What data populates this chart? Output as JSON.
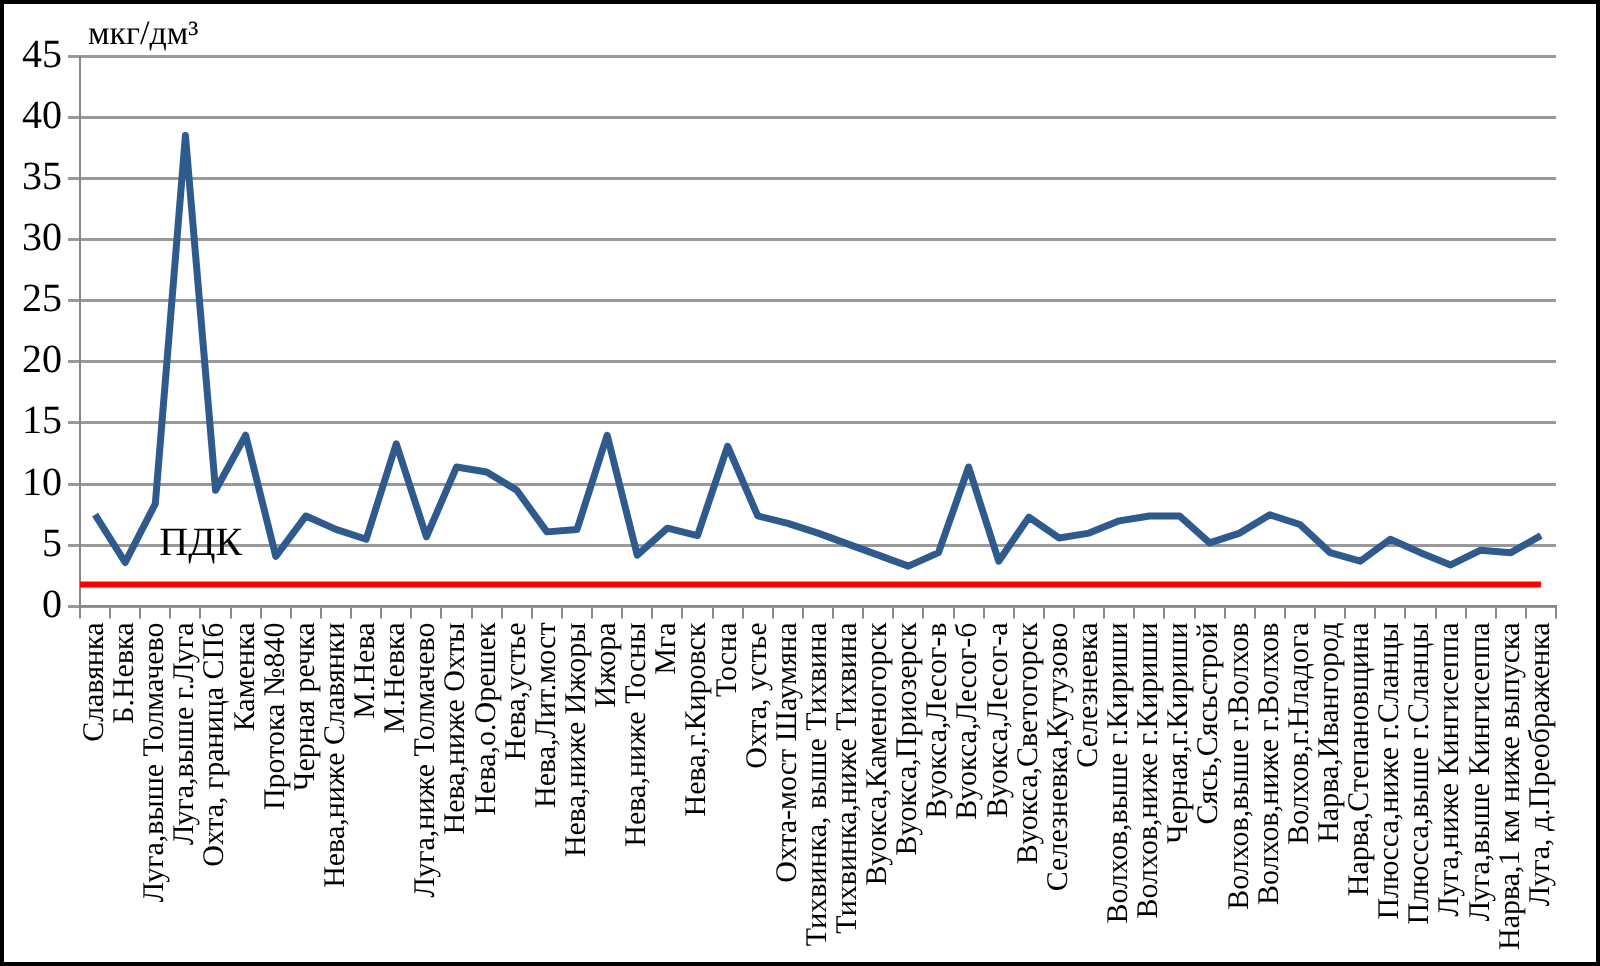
{
  "chart_data": {
    "type": "line",
    "ylabel": "мкг/дм³",
    "categories": [
      "Славянка",
      "Б.Невка",
      "Луга,выше Толмачево",
      "Луга,выше г.Луга",
      "Охта, граница СПб",
      "Каменка",
      "Протока №840",
      "Черная речка",
      "Нева,ниже Славянки",
      "М.Нева",
      "М.Невка",
      "Луга,ниже Толмачево",
      "Нева,ниже Охты",
      "Нева,о.Орешек",
      "Нева,устье",
      "Нева,Лит.мост",
      "Нева,ниже Ижоры",
      "Ижора",
      "Нева,ниже Тосны",
      "Мга",
      "Нева,г.Кировск",
      "Тосна",
      "Охта, устье",
      "Охта-мост Шаумяна",
      "Тихвинка, выше Тихвина",
      "Тихвинка,ниже Тихвина",
      "Вуокса,Каменогорск",
      "Вуокса,Приозерск",
      "Вуокса,Лесог-в",
      "Вуокса,Лесог-б",
      "Вуокса,Лесог-а",
      "Вуокса,Светогорск",
      "Селезневка,Кутузово",
      "Селезневка",
      "Волхов,выше г.Кириши",
      "Волхов,ниже г.Кириши",
      "Черная,г.Кириши",
      "Сясь,Сясьстрой",
      "Волхов,выше г.Волхов",
      "Волхов,ниже г.Волхов",
      "Волхов,г.Нладога",
      "Нарва,Ивангород",
      "Нарва,Степановщина",
      "Плюсса,ниже г.Сланцы",
      "Плюсса,выше г.Сланцы",
      "Луга,ниже Кингисеппа",
      "Луга,выше Кингисеппа",
      "Нарва,1 км ниже выпуска",
      "Луга, д.Преображенка"
    ],
    "series": [
      {
        "color": "#2e5a8e",
        "values": [
          7.5,
          3.6,
          8.4,
          38.5,
          9.5,
          14,
          4.1,
          7.4,
          6.3,
          5.5,
          13.3,
          5.7,
          11.4,
          11,
          9.5,
          6.1,
          6.3,
          14,
          4.2,
          6.4,
          5.8,
          13.1,
          7.4,
          6.8,
          6.0,
          5.1,
          4.2,
          3.3,
          4.4,
          11.4,
          3.7,
          7.3,
          5.6,
          6.0,
          7.0,
          7.4,
          7.4,
          5.2,
          6.0,
          7.5,
          6.7,
          4.4,
          3.7,
          5.5,
          4.4,
          3.4,
          4.6,
          4.4,
          5.8
        ]
      }
    ],
    "ylim": [
      0,
      45
    ],
    "yticks": [
      0,
      5,
      10,
      15,
      20,
      25,
      30,
      35,
      40,
      45
    ],
    "grid": "y",
    "legend": false,
    "marker": "none",
    "line_style": "solid",
    "ref_lines": [
      {
        "axis": "y",
        "value": 1.8,
        "label": "ПДК",
        "color": "#ff0000"
      }
    ]
  }
}
